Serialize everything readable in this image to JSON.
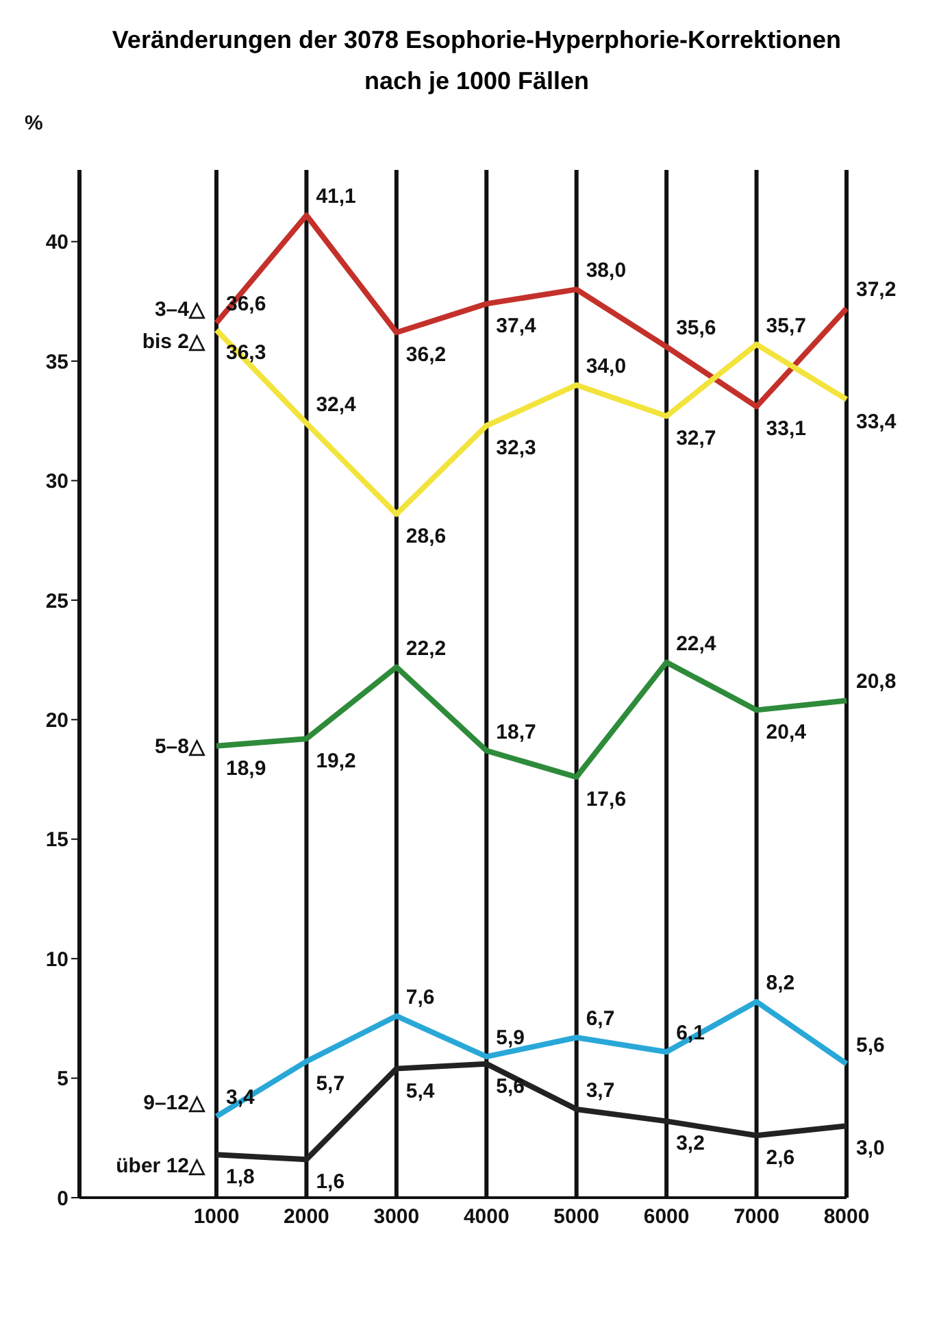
{
  "chart_data": {
    "type": "line",
    "title": "Veränderungen der 3078 Esophorie-Hyperphorie-Korrektionen nach je 1000 Fällen",
    "ylabel": "%",
    "categories": [
      "1000",
      "2000",
      "3000",
      "4000",
      "5000",
      "6000",
      "7000",
      "8000"
    ],
    "series": [
      {
        "name": "3–4△",
        "color": "#c4302a",
        "values": [
          36.6,
          41.1,
          36.2,
          37.4,
          38.0,
          35.6,
          33.1,
          37.2
        ],
        "value_labels": [
          "36,6",
          "41,1",
          "36,2",
          "37,4",
          "38,0",
          "35,6",
          "33,1",
          "37,2"
        ]
      },
      {
        "name": "bis 2△",
        "color": "#f2e43c",
        "values": [
          36.3,
          32.4,
          28.6,
          32.3,
          34.0,
          32.7,
          35.7,
          33.4
        ],
        "value_labels": [
          "36,3",
          "32,4",
          "28,6",
          "32,3",
          "34,0",
          "32,7",
          "35,7",
          "33,4"
        ]
      },
      {
        "name": "5–8△",
        "color": "#2e8b3a",
        "values": [
          18.9,
          19.2,
          22.2,
          18.7,
          17.6,
          22.4,
          20.4,
          20.8
        ],
        "value_labels": [
          "18,9",
          "19,2",
          "22,2",
          "18,7",
          "17,6",
          "22,4",
          "20,4",
          "20,8"
        ]
      },
      {
        "name": "9–12△",
        "color": "#29a8d8",
        "values": [
          3.4,
          5.7,
          7.6,
          5.9,
          6.7,
          6.1,
          8.2,
          5.6
        ],
        "value_labels": [
          "3,4",
          "5,7",
          "7,6",
          "5,9",
          "6,7",
          "6,1",
          "8,2",
          "5,6"
        ]
      },
      {
        "name": "über 12△",
        "color": "#222222",
        "values": [
          1.8,
          1.6,
          5.4,
          5.6,
          3.7,
          3.2,
          2.6,
          3.0
        ],
        "value_labels": [
          "1,8",
          "1,6",
          "5,4",
          "5,6",
          "3,7",
          "3,2",
          "2,6",
          "3,0"
        ]
      }
    ],
    "ylim": [
      0,
      43
    ],
    "yticks": [
      0,
      5,
      10,
      15,
      20,
      25,
      30,
      35,
      40
    ],
    "grid": "x",
    "marker": "none",
    "line_style": "solid"
  }
}
